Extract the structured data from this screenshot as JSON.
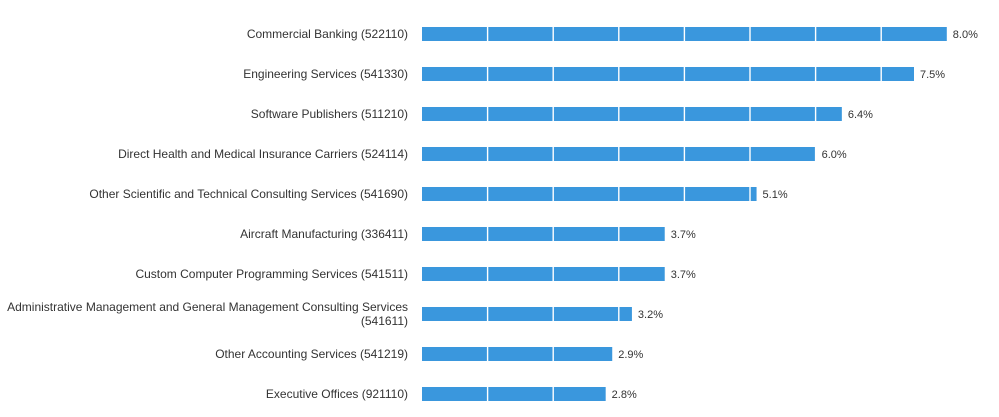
{
  "chart_data": {
    "type": "bar",
    "orientation": "horizontal",
    "title": "",
    "xlabel": "",
    "ylabel": "",
    "xlim": [
      0,
      8
    ],
    "grid": true,
    "legend": "none",
    "bar_color": "#3a97dd",
    "grid_color": "#ffffff",
    "value_suffix": "%",
    "categories": [
      [
        "Commercial Banking (522110)"
      ],
      [
        "Engineering Services (541330)"
      ],
      [
        "Software Publishers (511210)"
      ],
      [
        "Direct Health and Medical Insurance Carriers (524114)"
      ],
      [
        "Other Scientific and Technical Consulting Services (541690)"
      ],
      [
        "Aircraft Manufacturing (336411)"
      ],
      [
        "Custom Computer Programming Services (541511)"
      ],
      [
        "Administrative Management and General Management Consulting Services",
        "(541611)"
      ],
      [
        "Other Accounting Services (541219)"
      ],
      [
        "Executive Offices (921110)"
      ]
    ],
    "values": [
      8.0,
      7.5,
      6.4,
      6.0,
      5.1,
      3.7,
      3.7,
      3.2,
      2.9,
      2.8
    ],
    "value_labels": [
      "8.0%",
      "7.5%",
      "6.4%",
      "6.0%",
      "5.1%",
      "3.7%",
      "3.7%",
      "3.2%",
      "2.9%",
      "2.8%"
    ]
  }
}
